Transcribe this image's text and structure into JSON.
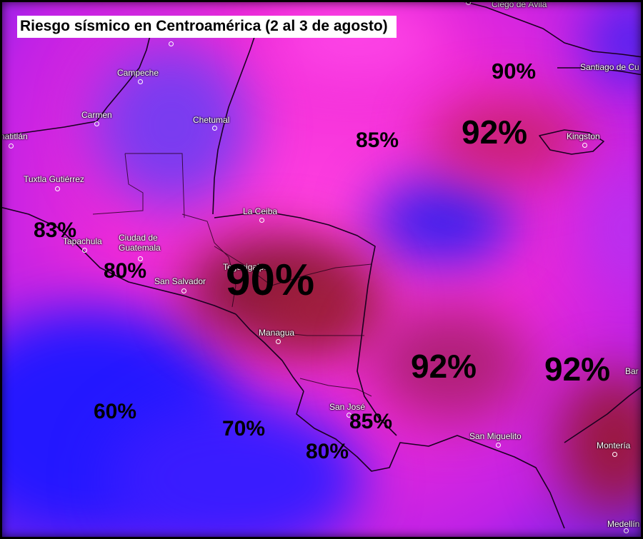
{
  "title": "Riesgo sísmico en Centroamérica (2 al 3 de agosto)",
  "colors": {
    "low": "#2a1cff",
    "mid": "#ff33dd",
    "high": "#8e1a2c",
    "hot": "#ff1aa8"
  },
  "cities": {
    "campeche": "Campeche",
    "carmen": "Carmen",
    "chetumal": "Chetumal",
    "natitlan": "natitlán",
    "tuxtla": "Tuxtla Gutiérrez",
    "tapachula": "Tapachula",
    "guatemala": "Ciudad de\nGuatemala",
    "san_salvador": "San Salvador",
    "tegucigalpa": "Tegucigalpa",
    "la_ceiba": "La Ceiba",
    "managua": "Managua",
    "san_jose": "San José",
    "san_miguelito": "San Miguelito",
    "monteria": "Montería",
    "medellin": "Medellín",
    "kingston": "Kingston",
    "santiago": "Santiago de Cu",
    "ciego": "Ciego de Ávila",
    "bar": "Bar"
  },
  "risk_labels": {
    "cuba": "90%",
    "jamaica": "92%",
    "belize_sea": "85%",
    "chiapas": "83%",
    "guatemala": "80%",
    "honduras": "90%",
    "caribbean_sw": "92%",
    "caribbean_se": "92%",
    "pacific_w": "60%",
    "pacific_c": "70%",
    "costa_rica_n": "85%",
    "costa_rica_s": "80%"
  }
}
